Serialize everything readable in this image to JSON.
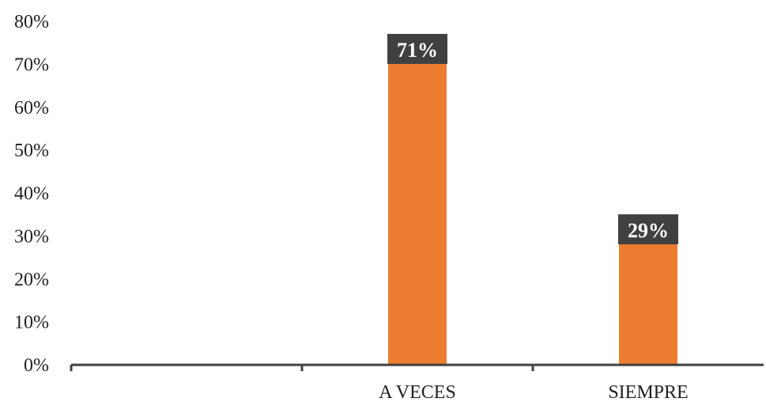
{
  "chart_data": {
    "type": "bar",
    "categories": [
      "",
      "A VECES",
      "SIEMPRE"
    ],
    "values": [
      null,
      71,
      29
    ],
    "data_labels": [
      "",
      "71%",
      "29%"
    ],
    "y_ticks": [
      "0%",
      "10%",
      "20%",
      "30%",
      "40%",
      "50%",
      "60%",
      "70%",
      "80%"
    ],
    "ylim": [
      0,
      80
    ],
    "grid": false,
    "legend": "none",
    "bar_color": "#ED7D31",
    "label_box_color": "#404040",
    "axis_color": "#404040"
  }
}
